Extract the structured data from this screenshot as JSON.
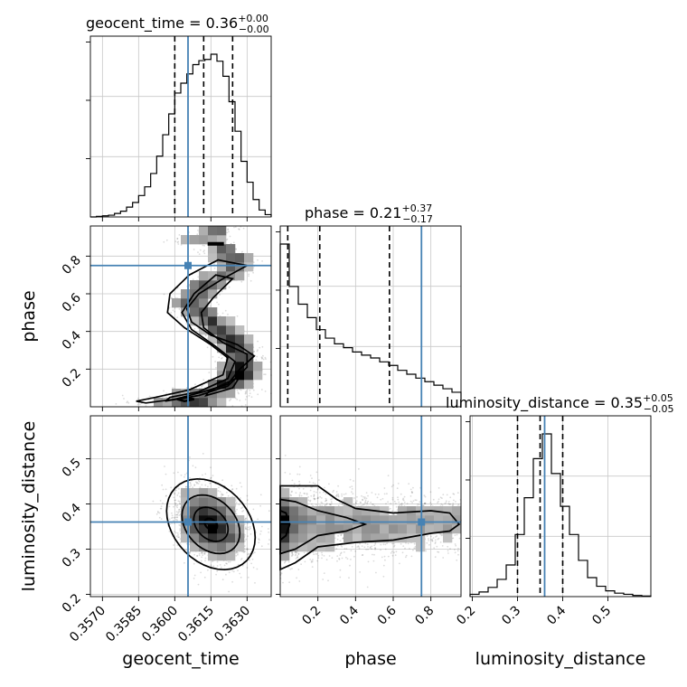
{
  "chart_data": {
    "type": "corner",
    "parameters": [
      "geocent_time",
      "phase",
      "luminosity_distance"
    ],
    "truths": {
      "geocent_time": 0.36055,
      "phase": 0.75,
      "luminosity_distance": 0.36
    },
    "truth_color": "#4682b4",
    "titles": [
      {
        "param": "geocent_time",
        "label": "geocent_time",
        "median": "0.36",
        "plus": "+0.00",
        "minus": "−0.00"
      },
      {
        "param": "phase",
        "label": "phase",
        "median": "0.21",
        "plus": "+0.37",
        "minus": "−0.17"
      },
      {
        "param": "luminosity_distance",
        "label": "luminosity_distance",
        "median": "0.35",
        "plus": "+0.05",
        "minus": "−0.05"
      }
    ],
    "axes": {
      "geocent_time": {
        "range": [
          0.3565,
          0.364
        ],
        "ticks": [
          0.357,
          0.3585,
          0.36,
          0.3615,
          0.363
        ],
        "tick_labels": [
          "0.3570",
          "0.3585",
          "0.3600",
          "0.3615",
          "0.3630"
        ],
        "label": "geocent_time"
      },
      "phase": {
        "range": [
          0.0,
          0.96
        ],
        "ticks": [
          0.2,
          0.4,
          0.6,
          0.8
        ],
        "tick_labels": [
          "0.2",
          "0.4",
          "0.6",
          "0.8"
        ],
        "label": "phase"
      },
      "luminosity_distance": {
        "range": [
          0.195,
          0.595
        ],
        "ticks": [
          0.2,
          0.3,
          0.4,
          0.5
        ],
        "tick_labels": [
          "0.2",
          "0.3",
          "0.4",
          "0.5"
        ],
        "label": "luminosity_distance"
      }
    },
    "histograms": {
      "geocent_time": {
        "bin_edges": [
          0.3565,
          0.35675,
          0.357,
          0.35725,
          0.3575,
          0.35775,
          0.358,
          0.35825,
          0.3585,
          0.35875,
          0.359,
          0.35925,
          0.3595,
          0.35975,
          0.36,
          0.36025,
          0.3605,
          0.36075,
          0.361,
          0.36125,
          0.3615,
          0.36175,
          0.362,
          0.36225,
          0.3625,
          0.36275,
          0.363,
          0.36325,
          0.3635,
          0.36375,
          0.364
        ],
        "counts": [
          0,
          1,
          2,
          3,
          6,
          10,
          17,
          25,
          37,
          52,
          75,
          105,
          142,
          178,
          214,
          231,
          247,
          263,
          270,
          272,
          281,
          269,
          243,
          199,
          148,
          96,
          60,
          30,
          12,
          4
        ],
        "quantiles": [
          0.36,
          0.3612,
          0.3624
        ]
      },
      "phase": {
        "bin_edges": [
          0.0,
          0.048,
          0.096,
          0.144,
          0.192,
          0.24,
          0.288,
          0.336,
          0.384,
          0.432,
          0.48,
          0.528,
          0.576,
          0.624,
          0.672,
          0.72,
          0.768,
          0.816,
          0.864,
          0.912,
          0.96
        ],
        "counts": [
          460,
          340,
          290,
          252,
          218,
          194,
          178,
          167,
          155,
          146,
          138,
          127,
          117,
          103,
          92,
          81,
          71,
          61,
          51,
          41
        ],
        "quantiles": [
          0.04,
          0.21,
          0.58
        ]
      },
      "luminosity_distance": {
        "bin_edges": [
          0.195,
          0.215,
          0.235,
          0.255,
          0.275,
          0.295,
          0.315,
          0.335,
          0.355,
          0.375,
          0.395,
          0.415,
          0.435,
          0.455,
          0.475,
          0.495,
          0.515,
          0.535,
          0.555,
          0.575,
          0.595
        ],
        "counts": [
          4,
          8,
          16,
          30,
          55,
          108,
          172,
          240,
          283,
          214,
          157,
          108,
          63,
          33,
          18,
          10,
          6,
          4,
          2,
          1
        ],
        "quantiles": [
          0.3,
          0.35,
          0.4
        ]
      }
    },
    "joint": {
      "phase_vs_geocent_time": {
        "description_of_modes": [
          {
            "x": 0.3606,
            "y": 0.05,
            "weight": 1.0
          },
          {
            "x": 0.3617,
            "y": 0.09,
            "weight": 0.7
          },
          {
            "x": 0.3628,
            "y": 0.17,
            "weight": 0.8
          },
          {
            "x": 0.3628,
            "y": 0.28,
            "weight": 0.6
          },
          {
            "x": 0.3618,
            "y": 0.42,
            "weight": 0.4
          },
          {
            "x": 0.3606,
            "y": 0.55,
            "weight": 0.35
          },
          {
            "x": 0.3612,
            "y": 0.64,
            "weight": 0.35
          },
          {
            "x": 0.3626,
            "y": 0.74,
            "weight": 0.3
          },
          {
            "x": 0.3618,
            "y": 0.87,
            "weight": 0.15
          }
        ]
      },
      "luminosity_distance_vs_geocent_time": {
        "center": {
          "x": 0.3615,
          "y": 0.355
        },
        "sigma": {
          "x": 0.00075,
          "y": 0.04
        }
      },
      "luminosity_distance_vs_phase": {
        "center": {
          "x": 0.02,
          "y": 0.355
        },
        "note": "mass concentrated at low phase, tail to high phase"
      }
    }
  }
}
